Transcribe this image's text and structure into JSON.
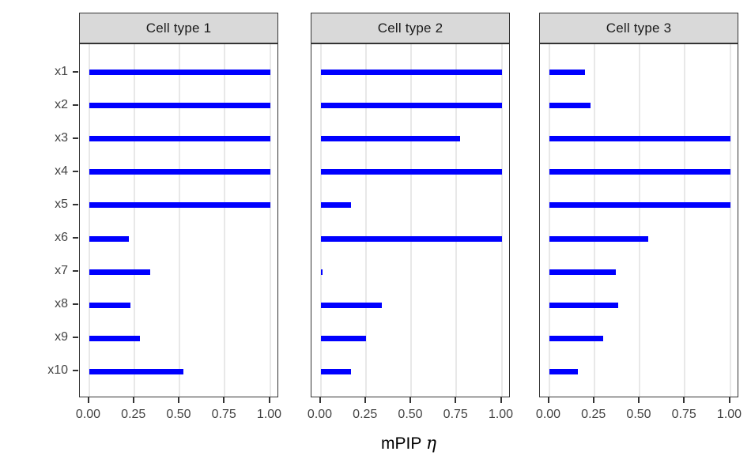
{
  "chart_data": {
    "type": "bar",
    "orientation": "horizontal",
    "title": "",
    "xlabel": "mPIP η",
    "xlabel_prefix": "mPIP",
    "xlabel_symbol": "η",
    "ylabel": "",
    "categories": [
      "x1",
      "x2",
      "x3",
      "x4",
      "x5",
      "x6",
      "x7",
      "x8",
      "x9",
      "x10"
    ],
    "facets": [
      {
        "label": "Cell type 1",
        "values": [
          1.0,
          1.0,
          1.0,
          1.0,
          1.0,
          0.22,
          0.34,
          0.23,
          0.28,
          0.52
        ]
      },
      {
        "label": "Cell type 2",
        "values": [
          1.0,
          1.0,
          0.77,
          1.0,
          0.17,
          1.0,
          0.01,
          0.34,
          0.25,
          0.17
        ]
      },
      {
        "label": "Cell type 3",
        "values": [
          0.2,
          0.23,
          1.0,
          1.0,
          1.0,
          0.55,
          0.37,
          0.38,
          0.3,
          0.16
        ]
      }
    ],
    "xlim": [
      0,
      1
    ],
    "xticks": [
      0,
      0.25,
      0.5,
      0.75,
      1
    ],
    "xtick_labels": [
      "0.00",
      "0.25",
      "0.50",
      "0.75",
      "1.00"
    ],
    "grid": "vertical-major-only",
    "legend": "none",
    "bar_color": "#0000FF"
  },
  "style": {
    "background": "#FFFFFF",
    "strip_bg": "#D9D9D9",
    "border_color": "#333333",
    "grid_color": "#E8E8E8",
    "axis_text_color": "#444444",
    "strip_text_color": "#1A1A1A",
    "tick_color": "#333333"
  }
}
